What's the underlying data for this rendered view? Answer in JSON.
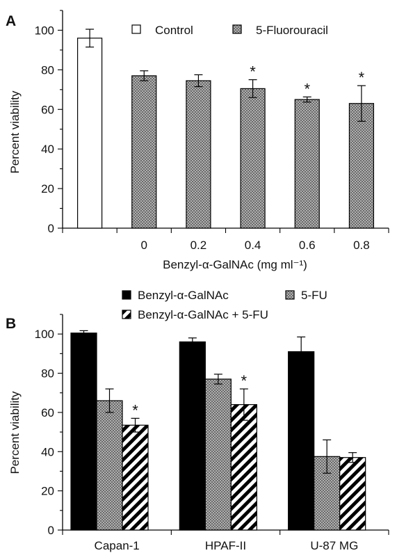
{
  "chart_data": [
    {
      "type": "bar",
      "panel": "A",
      "xlabel": "Benzyl-α-GalNAc (mg ml⁻¹)",
      "ylabel": "Percent viability",
      "ylim": [
        0,
        110
      ],
      "yticks": [
        "0",
        "20",
        "40",
        "60",
        "80",
        "100"
      ],
      "categories": [
        "",
        "0",
        "0.2",
        "0.4",
        "0.6",
        "0.8"
      ],
      "legend": [
        {
          "label": "Control",
          "pattern": "white"
        },
        {
          "label": "5-Fluorouracil",
          "pattern": "stipple"
        }
      ],
      "legend_position": "top",
      "bars": [
        {
          "category": "",
          "series": "Control",
          "value": 96,
          "error": 4.5,
          "significant": false
        },
        {
          "category": "0",
          "series": "5-Fluorouracil",
          "value": 77,
          "error": 2.5,
          "significant": false
        },
        {
          "category": "0.2",
          "series": "5-Fluorouracil",
          "value": 74.5,
          "error": 3,
          "significant": false
        },
        {
          "category": "0.4",
          "series": "5-Fluorouracil",
          "value": 70.5,
          "error": 4.5,
          "significant": true
        },
        {
          "category": "0.6",
          "series": "5-Fluorouracil",
          "value": 65,
          "error": 1.3,
          "significant": true
        },
        {
          "category": "0.8",
          "series": "5-Fluorouracil",
          "value": 63,
          "error": 9,
          "significant": true
        }
      ],
      "significance_mark": "*",
      "grid": false
    },
    {
      "type": "bar",
      "panel": "B",
      "xlabel": "",
      "ylabel": "Percent viability",
      "ylim": [
        0,
        110
      ],
      "yticks": [
        "0",
        "20",
        "40",
        "60",
        "80",
        "100"
      ],
      "categories": [
        "Capan-1",
        "HPAF-II",
        "U-87 MG"
      ],
      "legend_position": "top",
      "series": [
        {
          "name": "Benzyl-α-GalNAc",
          "pattern": "black",
          "values": [
            100.5,
            96,
            91
          ],
          "errors": [
            1.2,
            2,
            7.5
          ],
          "significant": [
            false,
            false,
            false
          ]
        },
        {
          "name": "5-FU",
          "pattern": "stipple",
          "values": [
            66,
            77,
            37.5
          ],
          "errors": [
            6,
            2.5,
            8.5
          ],
          "significant": [
            false,
            false,
            false
          ]
        },
        {
          "name": "Benzyl-α-GalNAc + 5-FU",
          "pattern": "hatch",
          "values": [
            53.5,
            64,
            37
          ],
          "errors": [
            3.5,
            8,
            2.5
          ],
          "significant": [
            true,
            true,
            false
          ]
        }
      ],
      "significance_mark": "*",
      "grid": false
    }
  ],
  "panel_a": {
    "letter": "A"
  },
  "panel_b": {
    "letter": "B"
  },
  "colors": {
    "control_fill": "#ffffff",
    "stipple_fill": "#9a9a9a",
    "black_fill": "#000000",
    "axis": "#000000"
  }
}
